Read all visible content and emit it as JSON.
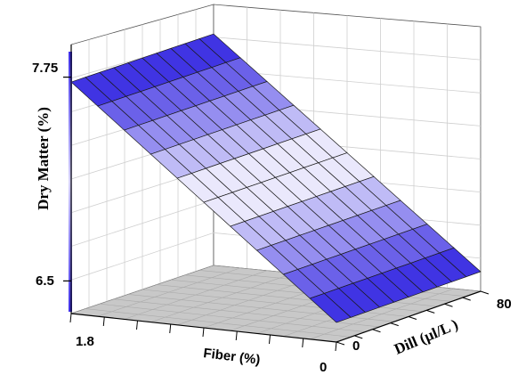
{
  "chart_data": {
    "type": "surface3d",
    "title": "",
    "zlabel": "Dry Matter (%)",
    "xlabel": "Fiber (%)",
    "ylabel": "Dill (µl/L )",
    "x_ticks": [
      "1.8",
      "0"
    ],
    "y_ticks": [
      "0",
      "80"
    ],
    "z_ticks": [
      "7.75",
      "6.5"
    ],
    "xlim": [
      0,
      1.8
    ],
    "ylim": [
      0,
      80
    ],
    "zlim": [
      6.3,
      7.95
    ],
    "grid": true,
    "surface": {
      "fiber_at_high_end": 1.8,
      "fiber_at_low_end": 0,
      "dry_matter_at_fiber_1_8": 7.72,
      "dry_matter_at_fiber_0": 6.42,
      "dill_effect": "none"
    },
    "colors": {
      "low": "#2b1de0",
      "mid": "#ffffff",
      "high": "#2b1de0",
      "colorbar": "#3d2ee6",
      "floor": "#c8c8c8"
    }
  }
}
